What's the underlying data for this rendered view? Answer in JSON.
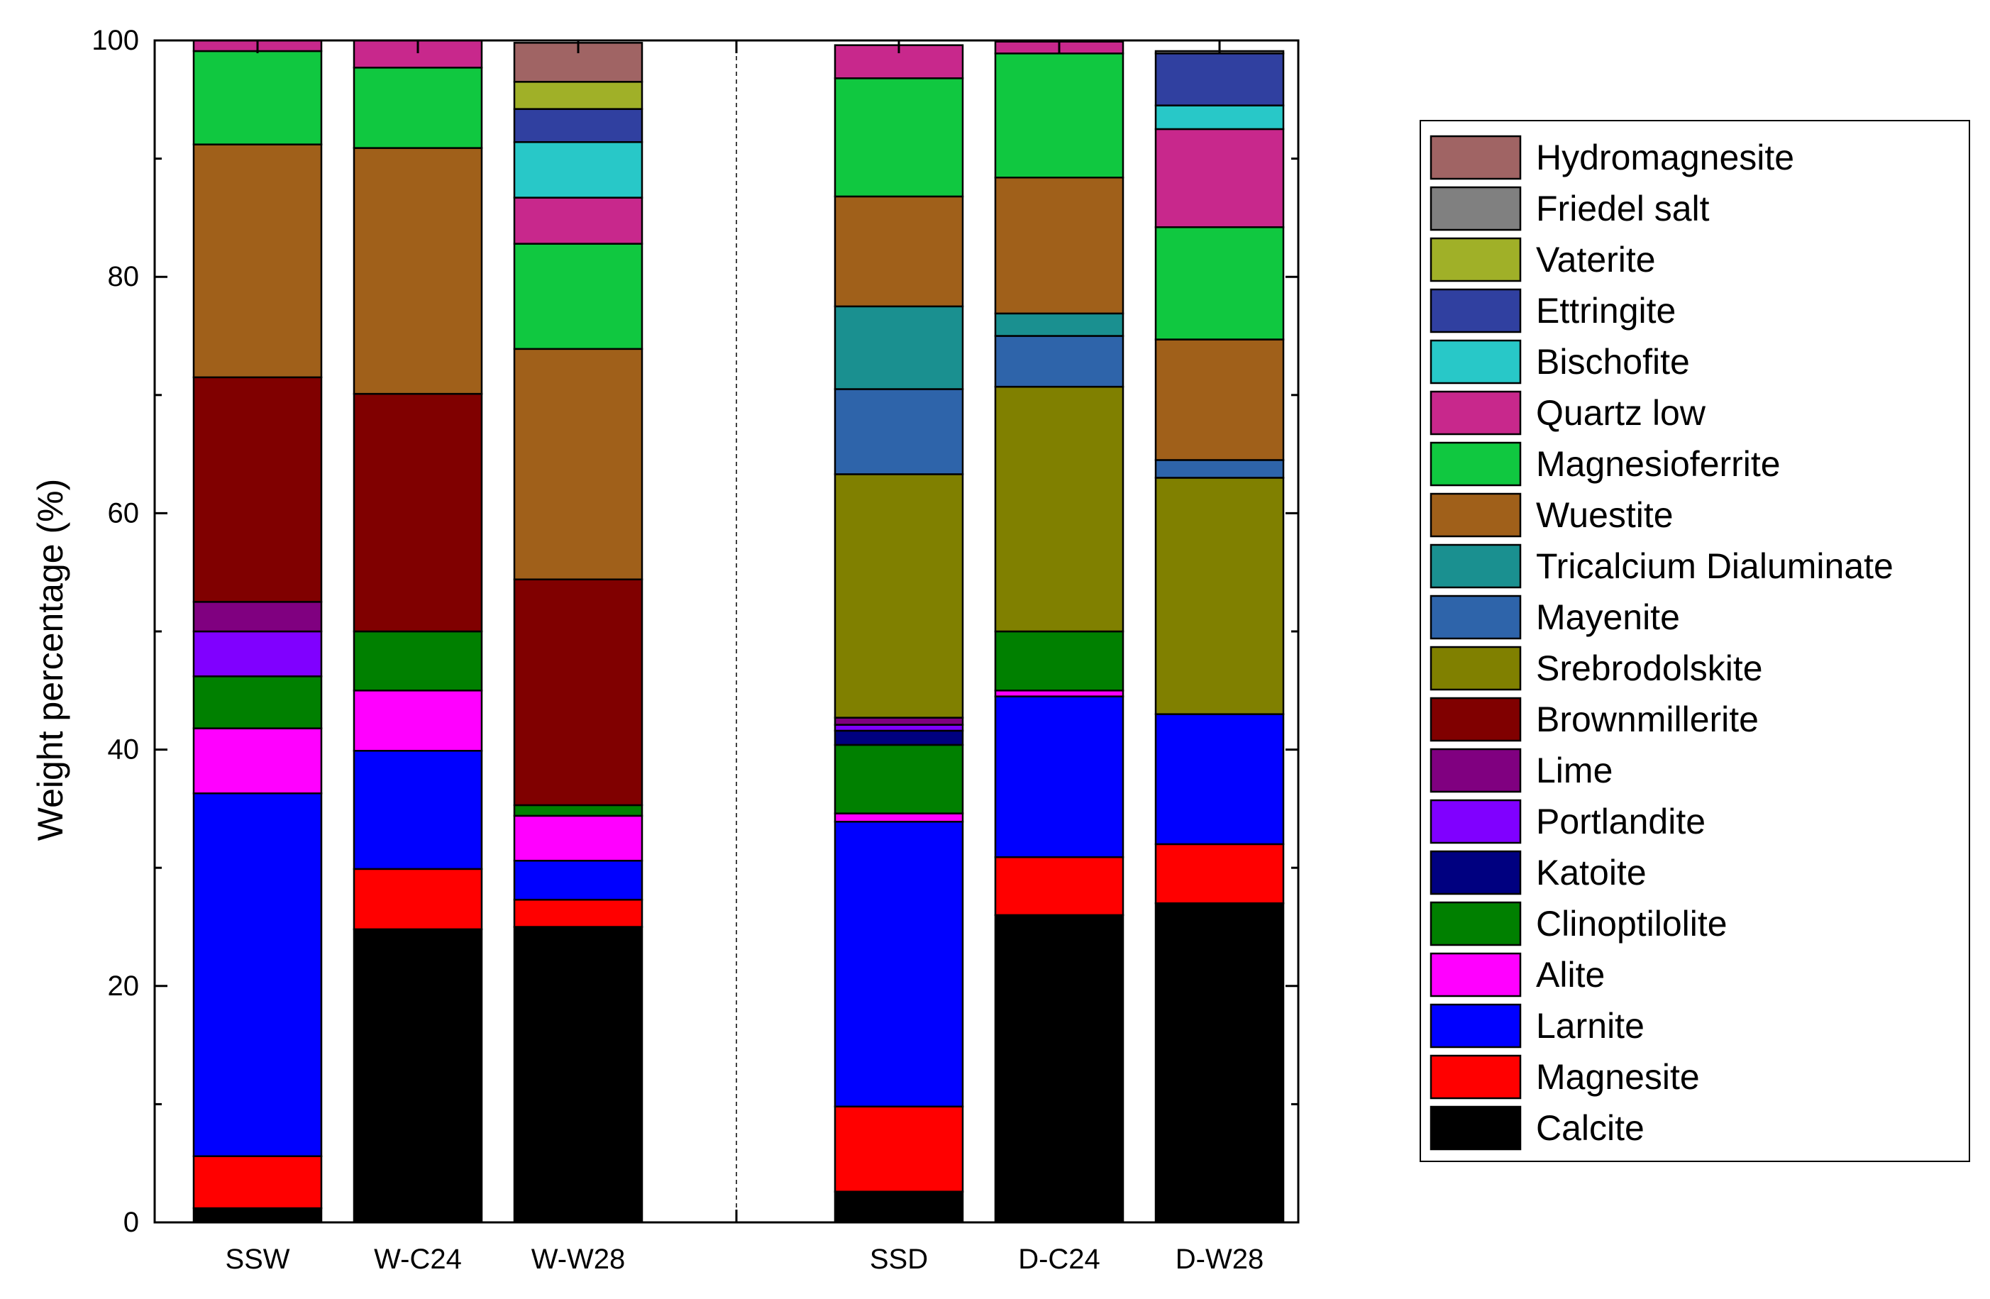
{
  "chart_data": {
    "type": "bar",
    "stacked": true,
    "title": "",
    "xlabel": "",
    "ylabel": "Weight percentage (%)",
    "ylim": [
      0,
      100
    ],
    "yticks": [
      "0",
      "20",
      "40",
      "60",
      "80",
      "100"
    ],
    "categories": [
      "SSW",
      "W-C24",
      "W-W28",
      "SSD",
      "D-C24",
      "D-W28"
    ],
    "legend_position": "right",
    "series": [
      {
        "name": "Calcite",
        "color": "#000000",
        "values": [
          1.2,
          24.8,
          25.0,
          2.6,
          26.0,
          27.0
        ]
      },
      {
        "name": "Magnesite",
        "color": "#ff0000",
        "values": [
          4.4,
          5.1,
          2.3,
          7.2,
          4.9,
          5.0
        ]
      },
      {
        "name": "Larnite",
        "color": "#0000ff",
        "values": [
          30.7,
          10.0,
          3.3,
          24.1,
          13.6,
          11.0
        ]
      },
      {
        "name": "Alite",
        "color": "#ff00ff",
        "values": [
          5.5,
          5.1,
          3.8,
          0.7,
          0.5,
          0
        ]
      },
      {
        "name": "Clinoptilolite",
        "color": "#008000",
        "values": [
          4.4,
          5.0,
          0.9,
          5.8,
          5.0,
          0
        ]
      },
      {
        "name": "Katoite",
        "color": "#000080",
        "values": [
          0,
          0,
          0,
          1.2,
          0,
          0
        ]
      },
      {
        "name": "Portlandite",
        "color": "#8000ff",
        "values": [
          3.8,
          0,
          0,
          0.5,
          0,
          0
        ]
      },
      {
        "name": "Lime",
        "color": "#800080",
        "values": [
          2.5,
          0,
          0,
          0.6,
          0,
          0
        ]
      },
      {
        "name": "Brownmillerite",
        "color": "#800000",
        "values": [
          19.0,
          20.1,
          19.1,
          0,
          0,
          0
        ]
      },
      {
        "name": "Srebrodolskite",
        "color": "#808000",
        "values": [
          0,
          0,
          0,
          20.6,
          20.7,
          20.0
        ]
      },
      {
        "name": "Mayenite",
        "color": "#2e64aa",
        "values": [
          0,
          0,
          0,
          7.2,
          4.3,
          1.5
        ]
      },
      {
        "name": "Tricalcium Dialuminate",
        "color": "#1a9090",
        "values": [
          0,
          0,
          0,
          7.0,
          1.9,
          0
        ]
      },
      {
        "name": "Wuestite",
        "color": "#a0601a",
        "values": [
          19.7,
          20.8,
          19.5,
          9.3,
          11.5,
          10.2
        ]
      },
      {
        "name": "Magnesioferrite",
        "color": "#10c840",
        "values": [
          7.9,
          6.8,
          8.9,
          10.0,
          10.5,
          9.5
        ]
      },
      {
        "name": "Quartz low",
        "color": "#c8288c",
        "values": [
          0.9,
          2.3,
          3.9,
          2.8,
          1.0,
          8.3
        ]
      },
      {
        "name": "Bischofite",
        "color": "#28c8c8",
        "values": [
          0,
          0,
          4.7,
          0,
          0,
          2.0
        ]
      },
      {
        "name": "Ettringite",
        "color": "#3040a0",
        "values": [
          0,
          0,
          2.8,
          0,
          0,
          4.4
        ]
      },
      {
        "name": "Vaterite",
        "color": "#a0b028",
        "values": [
          0,
          0,
          2.3,
          0,
          0,
          0
        ]
      },
      {
        "name": "Friedel salt",
        "color": "#808080",
        "values": [
          0,
          0,
          0,
          0,
          0,
          0.2
        ]
      },
      {
        "name": "Hydromagnesite",
        "color": "#a06464",
        "values": [
          0,
          0,
          3.3,
          0,
          0,
          0
        ]
      }
    ]
  }
}
